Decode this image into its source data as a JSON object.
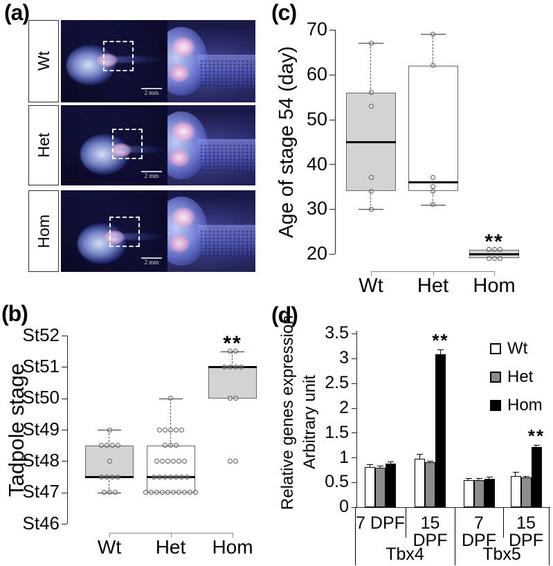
{
  "panel_a": {
    "label": "(a)",
    "rows": [
      {
        "label": "Wt",
        "scale_bar": "2 mm"
      },
      {
        "label": "Het",
        "scale_bar": "2 mm"
      },
      {
        "label": "Hom",
        "scale_bar": "2 mm"
      }
    ]
  },
  "colors": {
    "box_gray": "#d3d3d3",
    "wt_bar": "#ffffff",
    "het_bar": "#8c8c8c",
    "hom_bar": "#000000"
  },
  "chart_data": [
    {
      "id": "b",
      "type": "boxplot",
      "panel_label": "(b)",
      "ylabel": "Tadpole stage",
      "categories": [
        "Wt",
        "Het",
        "Hom"
      ],
      "ytick_labels": [
        "St46",
        "St47",
        "St48",
        "St49",
        "St50",
        "St51",
        "St52"
      ],
      "ytick_values": [
        46,
        47,
        48,
        49,
        50,
        51,
        52
      ],
      "ylim": [
        46,
        52
      ],
      "grid": false,
      "boxes": [
        {
          "category": "Wt",
          "fill": "#d3d3d3",
          "q1": 47.5,
          "median": 47.5,
          "q3": 48.5,
          "whisker_low": 47,
          "whisker_high": 49,
          "points": [
            {
              "value": 49,
              "count": 1
            },
            {
              "value": 48.5,
              "count": 4
            },
            {
              "value": 48,
              "count": 1
            },
            {
              "value": 47.5,
              "count": 4
            },
            {
              "value": 47,
              "count": 3
            }
          ],
          "significance": ""
        },
        {
          "category": "Het",
          "fill": "#ffffff",
          "q1": 47,
          "median": 47.5,
          "q3": 48.5,
          "whisker_low": 47,
          "whisker_high": 50,
          "points": [
            {
              "value": 50,
              "count": 1
            },
            {
              "value": 49,
              "count": 5
            },
            {
              "value": 48.5,
              "count": 3
            },
            {
              "value": 48,
              "count": 6
            },
            {
              "value": 47.5,
              "count": 7
            },
            {
              "value": 47,
              "count": 10
            }
          ],
          "significance": ""
        },
        {
          "category": "Hom",
          "fill": "#d3d3d3",
          "q1": 50,
          "median": 51,
          "q3": 51,
          "whisker_low": 50,
          "whisker_high": 51.5,
          "points": [
            {
              "value": 51.5,
              "count": 2
            },
            {
              "value": 51,
              "count": 4
            },
            {
              "value": 50,
              "count": 2
            },
            {
              "value": 48,
              "count": 2
            }
          ],
          "significance": "**"
        }
      ]
    },
    {
      "id": "c",
      "type": "boxplot",
      "panel_label": "(c)",
      "ylabel": "Age of stage 54 (day)",
      "categories": [
        "Wt",
        "Het",
        "Hom"
      ],
      "ytick_labels": [
        "20",
        "30",
        "40",
        "50",
        "60",
        "70"
      ],
      "ytick_values": [
        20,
        30,
        40,
        50,
        60,
        70
      ],
      "ylim": [
        20,
        70
      ],
      "grid": false,
      "boxes": [
        {
          "category": "Wt",
          "fill": "#d3d3d3",
          "q1": 34,
          "median": 45,
          "q3": 56,
          "whisker_low": 30,
          "whisker_high": 67,
          "points": [
            {
              "value": 67,
              "count": 1
            },
            {
              "value": 56,
              "count": 1
            },
            {
              "value": 53,
              "count": 1
            },
            {
              "value": 37,
              "count": 1
            },
            {
              "value": 34,
              "count": 1
            },
            {
              "value": 30,
              "count": 1
            }
          ],
          "significance": ""
        },
        {
          "category": "Het",
          "fill": "#ffffff",
          "q1": 34,
          "median": 36,
          "q3": 62,
          "whisker_low": 31,
          "whisker_high": 69,
          "points": [
            {
              "value": 69,
              "count": 1
            },
            {
              "value": 62,
              "count": 1
            },
            {
              "value": 37,
              "count": 1
            },
            {
              "value": 35,
              "count": 1
            },
            {
              "value": 34,
              "count": 1
            },
            {
              "value": 31,
              "count": 1
            }
          ],
          "significance": ""
        },
        {
          "category": "Hom",
          "fill": "#d3d3d3",
          "q1": 19,
          "median": 20,
          "q3": 21,
          "whisker_low": 19,
          "whisker_high": 21,
          "points": [
            {
              "value": 21,
              "count": 3
            },
            {
              "value": 19,
              "count": 3
            }
          ],
          "significance": "**"
        }
      ]
    },
    {
      "id": "d",
      "type": "bar",
      "panel_label": "(d)",
      "ylabel_lines": [
        "Relative genes expression",
        "Arbitrary unit"
      ],
      "ylim": [
        0,
        3.5
      ],
      "ytick_values": [
        0,
        0.5,
        1,
        1.5,
        2,
        2.5,
        3,
        3.5
      ],
      "ytick_labels": [
        "0",
        "0.5",
        "1",
        "1.5",
        "2",
        "2.5",
        "3",
        "3.5"
      ],
      "categories": [
        "7 DPF",
        "15 DPF",
        "7 DPF",
        "15 DPF"
      ],
      "gene_groups": [
        {
          "label": "Tbx4",
          "span": [
            0,
            1
          ]
        },
        {
          "label": "Tbx5",
          "span": [
            2,
            3
          ]
        }
      ],
      "series": [
        {
          "name": "Wt",
          "color": "#ffffff",
          "values": [
            0.81,
            0.97,
            0.55,
            0.63
          ],
          "errors": [
            0.05,
            0.1,
            0.04,
            0.08
          ]
        },
        {
          "name": "Het",
          "color": "#8c8c8c",
          "values": [
            0.8,
            0.9,
            0.55,
            0.6
          ],
          "errors": [
            0.03,
            0.03,
            0.03,
            0.03
          ]
        },
        {
          "name": "Hom",
          "color": "#000000",
          "values": [
            0.88,
            3.08,
            0.57,
            1.21
          ],
          "errors": [
            0.04,
            0.1,
            0.05,
            0.04
          ]
        }
      ],
      "significance": [
        {
          "category_index": 1,
          "series": "Hom",
          "label": "**"
        },
        {
          "category_index": 3,
          "series": "Hom",
          "label": "**"
        }
      ],
      "legend": {
        "position": "top-right",
        "items": [
          "Wt",
          "Het",
          "Hom"
        ]
      }
    }
  ]
}
